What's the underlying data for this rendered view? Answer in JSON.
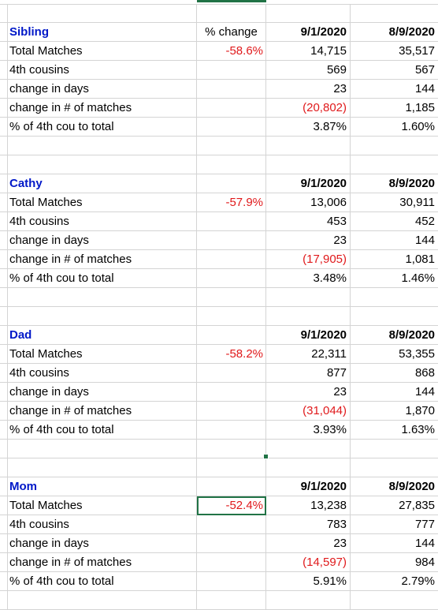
{
  "blocks": [
    {
      "name": "Sibling",
      "pct_header": "% change",
      "date1": "9/1/2020",
      "date2": "8/9/2020",
      "pct": "-58.6%",
      "rows": [
        {
          "label": "Total Matches",
          "v1": "14,715",
          "v2": "35,517"
        },
        {
          "label": "4th cousins",
          "v1": "569",
          "v2": "567"
        },
        {
          "label": "change in days",
          "v1": "23",
          "v2": "144"
        },
        {
          "label": "change in # of matches",
          "v1": "(20,802)",
          "v2": "1,185"
        },
        {
          "label": "% of 4th cou to total",
          "v1": "3.87%",
          "v2": "1.60%"
        }
      ]
    },
    {
      "name": "Cathy",
      "pct_header": "",
      "date1": "9/1/2020",
      "date2": "8/9/2020",
      "pct": "-57.9%",
      "rows": [
        {
          "label": "Total Matches",
          "v1": "13,006",
          "v2": "30,911"
        },
        {
          "label": "4th cousins",
          "v1": "453",
          "v2": "452"
        },
        {
          "label": "change in days",
          "v1": "23",
          "v2": "144"
        },
        {
          "label": "change in # of matches",
          "v1": "(17,905)",
          "v2": "1,081"
        },
        {
          "label": "% of 4th cou to total",
          "v1": "3.48%",
          "v2": "1.46%"
        }
      ]
    },
    {
      "name": "Dad",
      "pct_header": "",
      "date1": "9/1/2020",
      "date2": "8/9/2020",
      "pct": "-58.2%",
      "rows": [
        {
          "label": "Total Matches",
          "v1": "22,311",
          "v2": "53,355"
        },
        {
          "label": "4th cousins",
          "v1": "877",
          "v2": "868"
        },
        {
          "label": "change in days",
          "v1": "23",
          "v2": "144"
        },
        {
          "label": "change in # of matches",
          "v1": "(31,044)",
          "v2": "1,870"
        },
        {
          "label": "% of 4th cou to total",
          "v1": "3.93%",
          "v2": "1.63%"
        }
      ]
    },
    {
      "name": "Mom",
      "pct_header": "",
      "date1": "9/1/2020",
      "date2": "8/9/2020",
      "pct": "-52.4%",
      "rows": [
        {
          "label": "Total Matches",
          "v1": "13,238",
          "v2": "27,835"
        },
        {
          "label": "4th cousins",
          "v1": "783",
          "v2": "777"
        },
        {
          "label": "change in days",
          "v1": "23",
          "v2": "144"
        },
        {
          "label": "change in # of matches",
          "v1": "(14,597)",
          "v2": "984"
        },
        {
          "label": "% of 4th cou to total",
          "v1": "5.91%",
          "v2": "2.79%"
        }
      ]
    }
  ],
  "colors": {
    "name_blue": "#0018c8",
    "negative_red": "#e0191b",
    "selection_green": "#217346",
    "gridline": "#d4d4d4"
  }
}
